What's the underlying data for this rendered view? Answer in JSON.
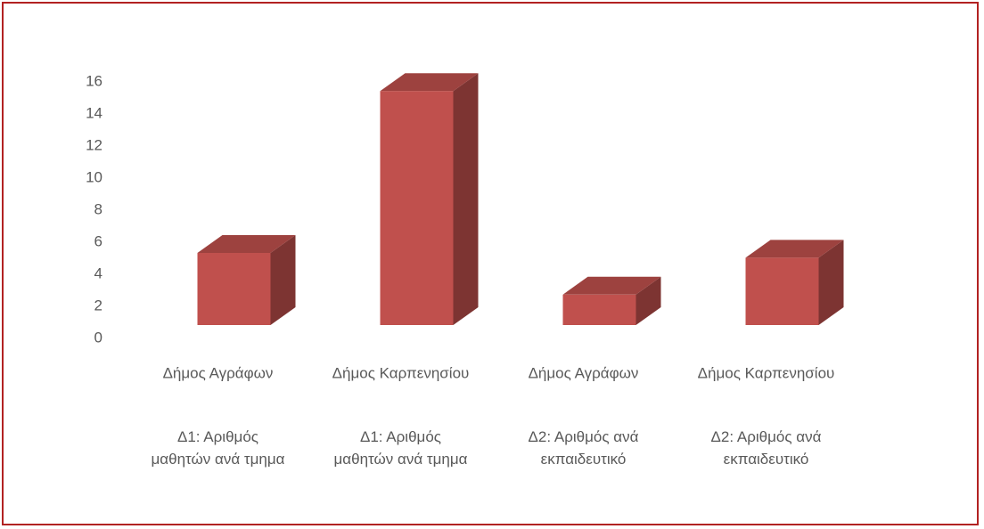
{
  "chart_data": {
    "type": "bar3d",
    "categories": [
      [
        "Δήμος Αγράφων",
        "Δ1: Αριθμός μαθητών ανά τμημα"
      ],
      [
        "Δήμος Καρπενησίου",
        "Δ1: Αριθμός μαθητών ανά τμημα"
      ],
      [
        "Δήμος Αγράφων",
        "Δ2: Αριθμός ανά εκπαιδευτικό"
      ],
      [
        "Δήμος Καρπενησίου",
        "Δ2: Αριθμός ανά εκπαιδευτικό"
      ]
    ],
    "values": [
      4.5,
      14.6,
      1.9,
      4.2
    ],
    "color": "#c0504d",
    "ylim": [
      0,
      16
    ],
    "yticks": [
      0,
      2,
      4,
      6,
      8,
      10,
      12,
      14,
      16
    ],
    "grid": false
  }
}
